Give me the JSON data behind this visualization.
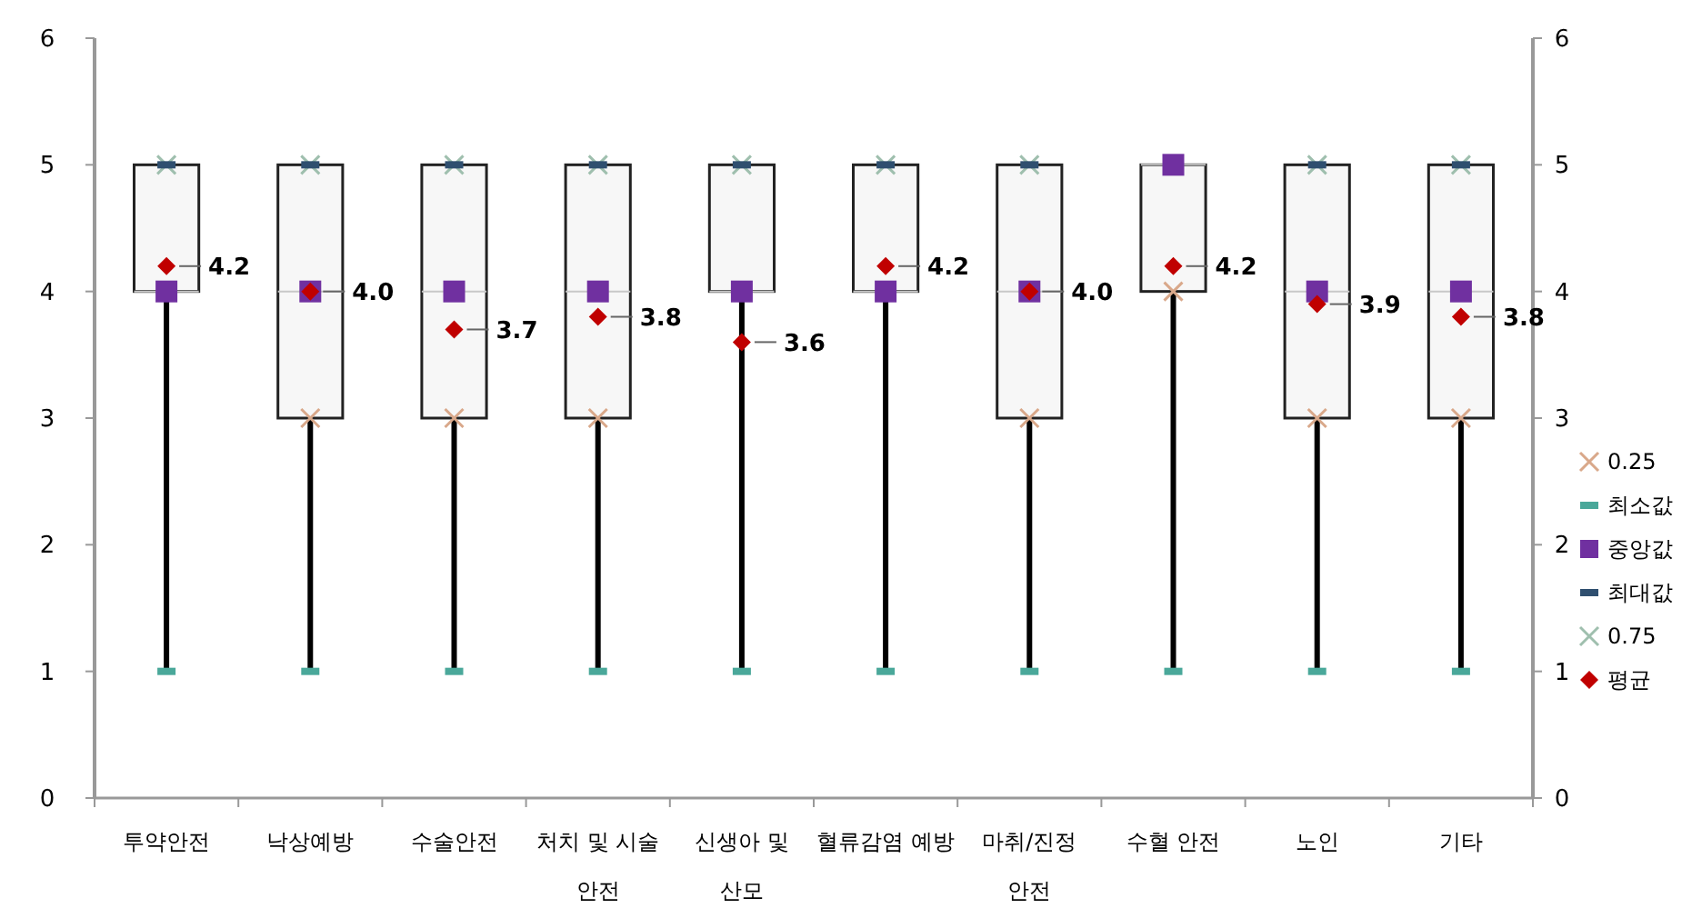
{
  "chart_data": {
    "type": "box",
    "categories": [
      "투약안전",
      "낙상예방",
      "수술안전",
      "처치 및 시술 안전",
      "신생아 및 산모",
      "혈류감염 예방",
      "마취/진정 안전",
      "수혈 안전",
      "노인",
      "기타"
    ],
    "ylim": [
      0,
      6
    ],
    "yticks": [
      0,
      1,
      2,
      3,
      4,
      5,
      6
    ],
    "y2lim": [
      0,
      6
    ],
    "y2ticks": [
      0,
      1,
      2,
      3,
      4,
      5,
      6
    ],
    "legend": "right",
    "grid": false,
    "boxes": [
      {
        "low": 1,
        "q1": 4,
        "median": 4,
        "q3": 5,
        "high": 5
      },
      {
        "low": 1,
        "q1": 3,
        "median": 4,
        "q3": 5,
        "high": 5
      },
      {
        "low": 1,
        "q1": 3,
        "median": 4,
        "q3": 5,
        "high": 5
      },
      {
        "low": 1,
        "q1": 3,
        "median": 4,
        "q3": 5,
        "high": 5
      },
      {
        "low": 1,
        "q1": 4,
        "median": 4,
        "q3": 5,
        "high": 5
      },
      {
        "low": 1,
        "q1": 4,
        "median": 4,
        "q3": 5,
        "high": 5
      },
      {
        "low": 1,
        "q1": 3,
        "median": 4,
        "q3": 5,
        "high": 5
      },
      {
        "low": 1,
        "q1": 4,
        "median": 5,
        "q3": 5,
        "high": 5
      },
      {
        "low": 1,
        "q1": 3,
        "median": 4,
        "q3": 5,
        "high": 5
      },
      {
        "low": 1,
        "q1": 3,
        "median": 4,
        "q3": 5,
        "high": 5
      }
    ],
    "series": [
      {
        "type": "scatter",
        "name": "0.25",
        "color": "#d9a88a",
        "marker": "cross",
        "values": [
          null,
          3,
          3,
          3,
          null,
          null,
          3,
          4,
          3,
          3
        ]
      },
      {
        "type": "scatter",
        "name": "최소값",
        "color": "#4aa89a",
        "values": [
          1,
          1,
          1,
          1,
          1,
          1,
          1,
          1,
          1,
          1
        ]
      },
      {
        "type": "scatter",
        "name": "중앙값",
        "color": "#7030a0",
        "marker": "square",
        "values": [
          4,
          4,
          4,
          4,
          4,
          4,
          4,
          5,
          4,
          4
        ]
      },
      {
        "type": "scatter",
        "name": "최대값",
        "color": "#2f4f6f",
        "values": [
          5,
          5,
          5,
          5,
          5,
          5,
          5,
          null,
          5,
          5
        ]
      },
      {
        "type": "scatter",
        "name": "0.75",
        "color": "#9fbfae",
        "marker": "cross",
        "values": [
          5,
          5,
          5,
          5,
          5,
          5,
          5,
          null,
          5,
          5
        ]
      },
      {
        "type": "scatter",
        "name": "평균",
        "color": "#c00000",
        "marker": "diamond",
        "values": [
          4.2,
          4.0,
          3.7,
          3.8,
          3.6,
          4.2,
          4.0,
          4.2,
          3.9,
          3.8
        ],
        "value_labels": [
          "4.2",
          "4.0",
          "3.7",
          "3.8",
          "3.6",
          "4.2",
          "4.0",
          "4.2",
          "3.9",
          "3.8"
        ]
      }
    ]
  }
}
